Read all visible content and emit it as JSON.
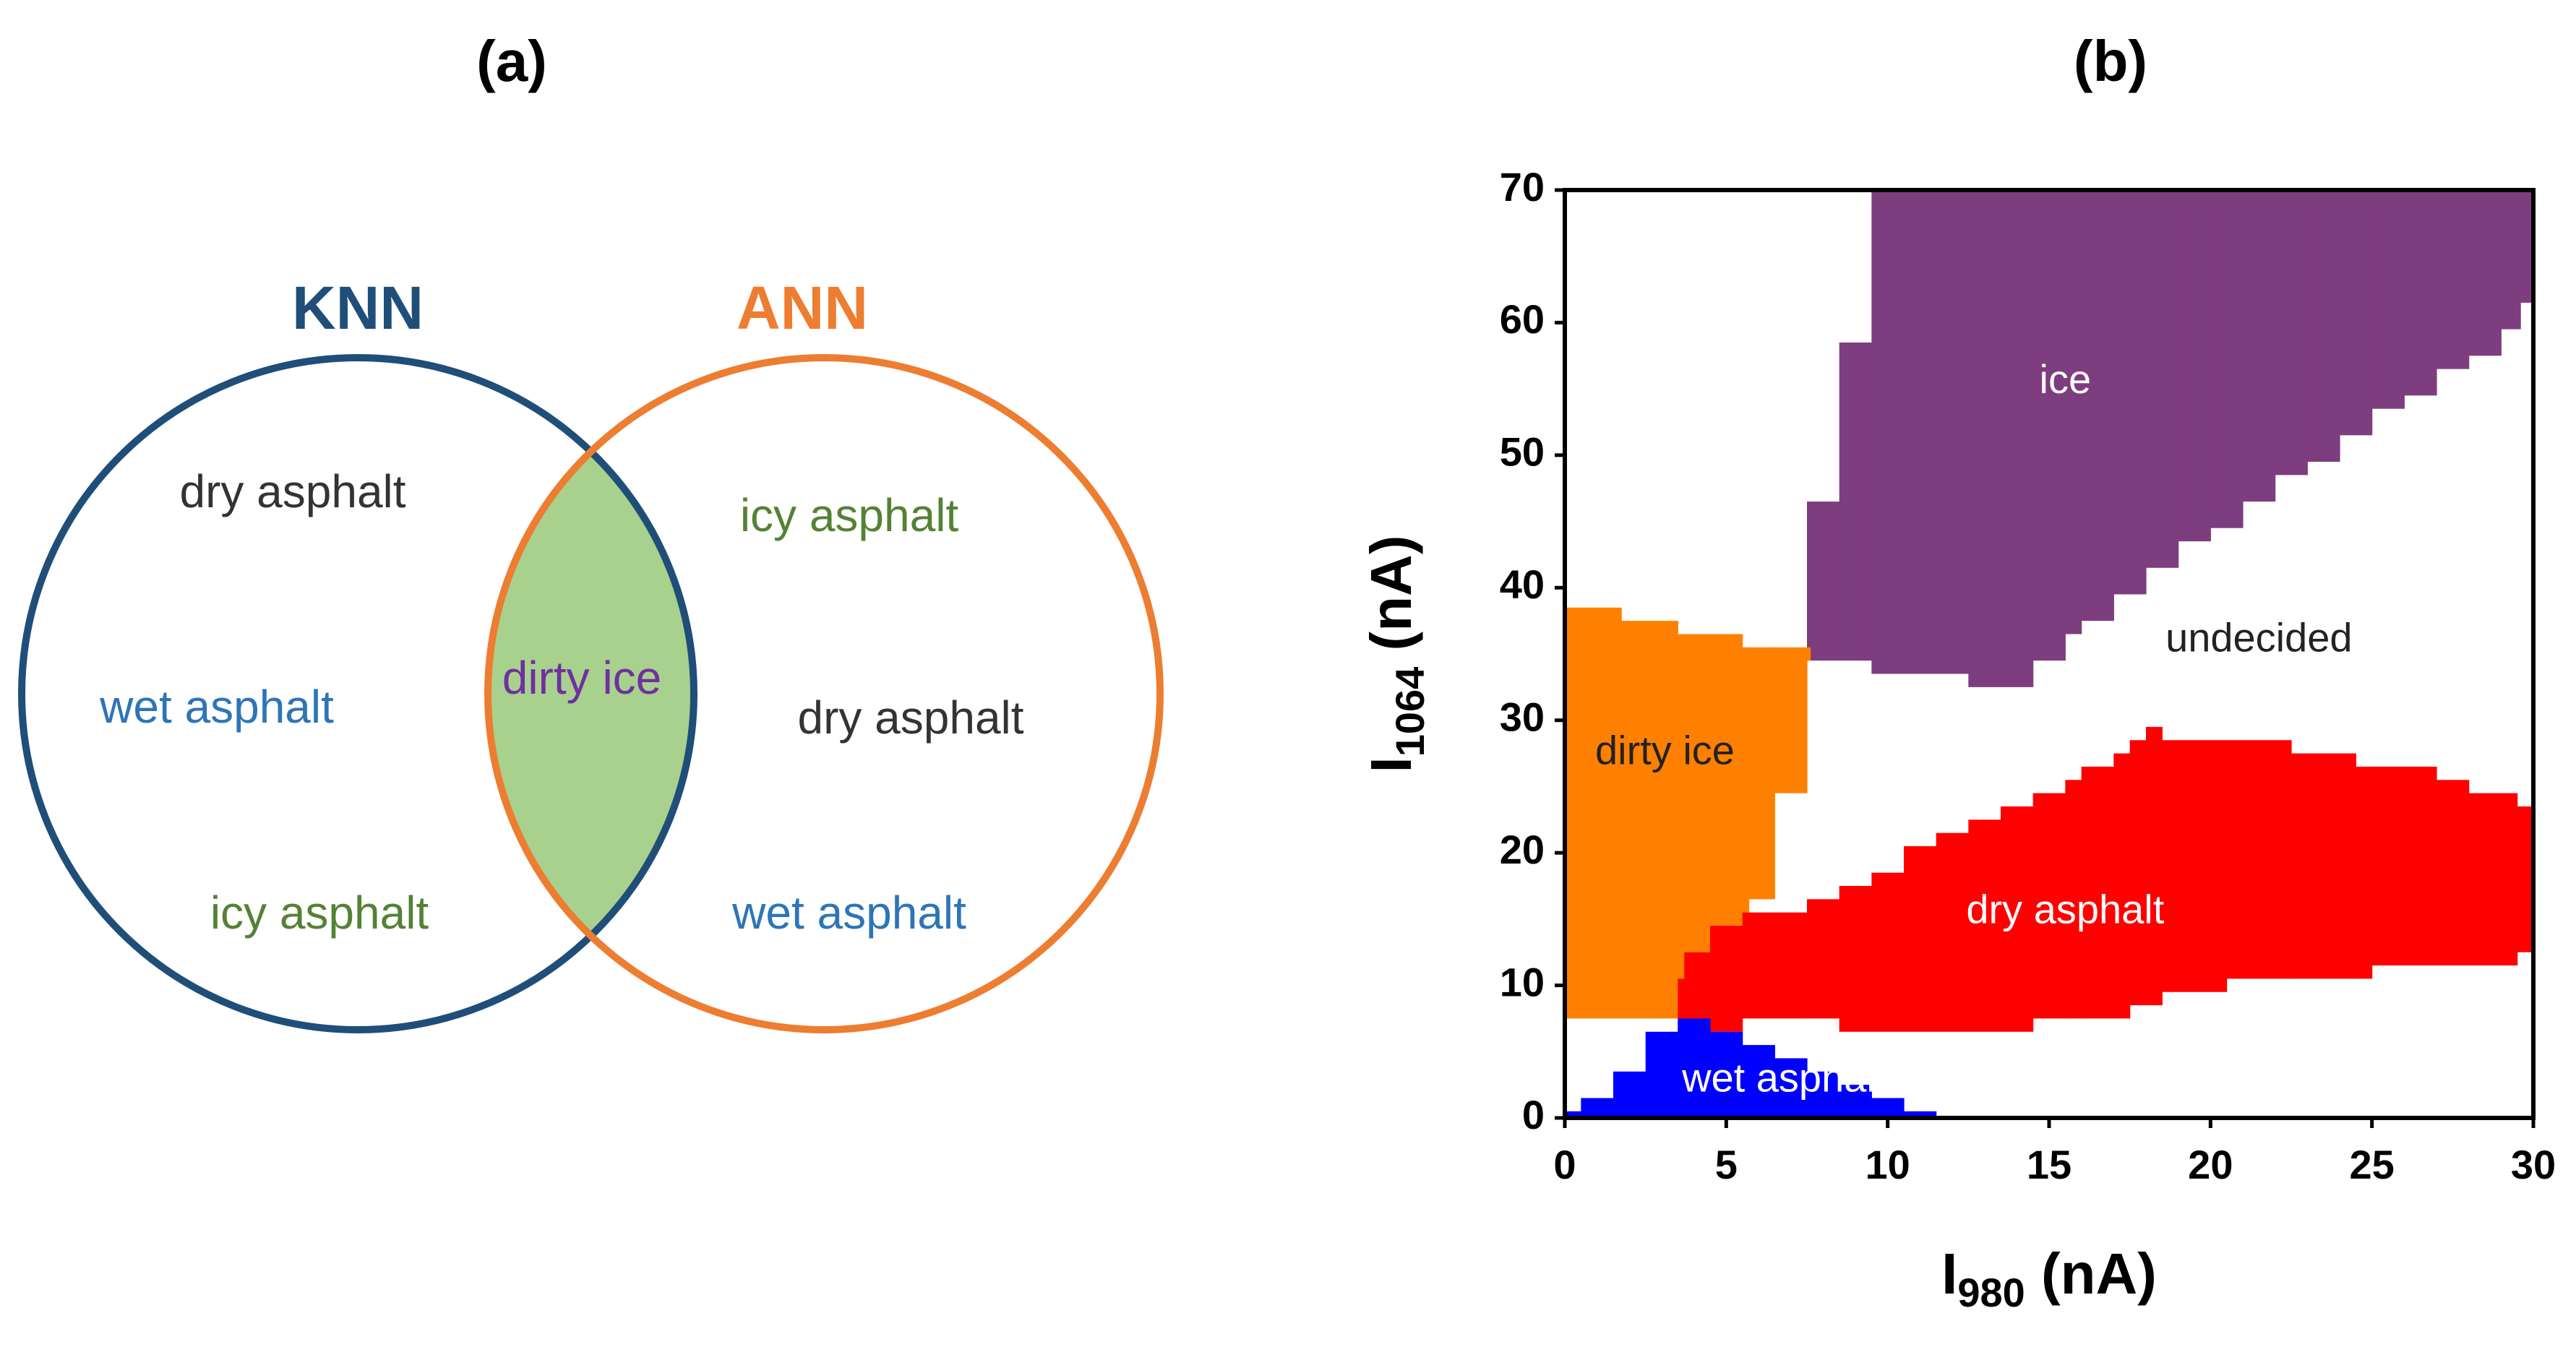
{
  "panels": {
    "a": "(a)",
    "b": "(b)"
  },
  "venn": {
    "left_title": "KNN",
    "right_title": "ANN",
    "left_color": "#1f4e79",
    "right_color": "#ed7d31",
    "overlap_color": "#a9d18e",
    "left_only": [
      {
        "text": "dry asphalt",
        "color": "#333333"
      },
      {
        "text": "wet asphalt",
        "color": "#2e75b6"
      },
      {
        "text": "icy asphalt",
        "color": "#548235"
      }
    ],
    "overlap": [
      {
        "text": "dirty ice",
        "color": "#7030a0"
      }
    ],
    "right_only": [
      {
        "text": "icy asphalt",
        "color": "#548235"
      },
      {
        "text": "dry asphalt",
        "color": "#333333"
      },
      {
        "text": "wet asphalt",
        "color": "#2e75b6"
      }
    ]
  },
  "chart_data": {
    "type": "region map",
    "xlabel": {
      "main": "I",
      "sub": "980",
      "unit": " (nA)"
    },
    "ylabel": {
      "main": "I",
      "sub": "1064",
      "unit": " (nA)"
    },
    "xlim": [
      0,
      30
    ],
    "ylim": [
      0,
      70
    ],
    "xticks": [
      "0",
      "5",
      "10",
      "15",
      "20",
      "25",
      "30"
    ],
    "yticks": [
      "0",
      "10",
      "20",
      "30",
      "40",
      "50",
      "60",
      "70"
    ],
    "regions": [
      {
        "name": "ice",
        "color": "#7e3d7e",
        "text_color": "#ffffff",
        "label": "ice",
        "label_at": [
          15.5,
          55.5
        ],
        "bounds": [
          [
            7.5,
            34.5,
            46.5
          ],
          [
            8.5,
            34.5,
            58.5
          ],
          [
            9.5,
            33.5,
            70
          ],
          [
            12.5,
            32.5,
            70
          ],
          [
            14.5,
            34.5,
            70
          ],
          [
            15.5,
            36.5,
            70
          ],
          [
            16.0,
            37.5,
            70
          ],
          [
            17.0,
            39.5,
            70
          ],
          [
            18.0,
            41.5,
            70
          ],
          [
            19.0,
            43.5,
            70
          ],
          [
            20.0,
            44.5,
            70
          ],
          [
            21.0,
            46.5,
            70
          ],
          [
            22.0,
            48.5,
            70
          ],
          [
            23.0,
            49.5,
            70
          ],
          [
            24.0,
            51.5,
            70
          ],
          [
            25.0,
            53.5,
            70
          ],
          [
            26.0,
            54.5,
            70
          ],
          [
            27.0,
            56.5,
            70
          ],
          [
            28.0,
            57.5,
            70
          ],
          [
            29.0,
            59.5,
            70
          ],
          [
            29.6,
            61.5,
            70
          ],
          [
            30.0,
            null,
            null
          ]
        ]
      },
      {
        "name": "dirty ice",
        "color": "#ff8000",
        "text_color": "#222222",
        "label": "dirty ice",
        "label_at": [
          3.1,
          27.5
        ],
        "bounds": [
          [
            0,
            7.5,
            38.5
          ],
          [
            1.75,
            7.5,
            37.5
          ],
          [
            3.5,
            7.5,
            36.5
          ],
          [
            3.7,
            12.5,
            36.5
          ],
          [
            4.7,
            14.5,
            36.5
          ],
          [
            5.5,
            14.5,
            35.5
          ],
          [
            5.7,
            16.5,
            35.5
          ],
          [
            6.5,
            24.5,
            35.5
          ],
          [
            7.5,
            34.5,
            35.5
          ],
          [
            7.6,
            null,
            null
          ]
        ]
      },
      {
        "name": "dry asphalt",
        "color": "#ff0000",
        "text_color": "#ffffff",
        "label": "dry asphalt",
        "label_at": [
          15.5,
          15.5
        ],
        "bounds": [
          [
            3.5,
            6.5,
            10.5
          ],
          [
            3.7,
            6.5,
            12.5
          ],
          [
            4.5,
            6.5,
            14.5
          ],
          [
            5.5,
            7.5,
            15.5
          ],
          [
            7.5,
            7.5,
            16.5
          ],
          [
            8.5,
            6.5,
            17.5
          ],
          [
            9.5,
            6.5,
            18.5
          ],
          [
            10.5,
            6.5,
            20.5
          ],
          [
            11.5,
            6.5,
            21.5
          ],
          [
            12.5,
            6.5,
            22.5
          ],
          [
            13.5,
            6.5,
            23.5
          ],
          [
            14.5,
            7.5,
            24.5
          ],
          [
            15.5,
            7.5,
            25.5
          ],
          [
            16.0,
            7.5,
            26.5
          ],
          [
            17.0,
            7.5,
            27.5
          ],
          [
            17.5,
            8.5,
            28.5
          ],
          [
            18.0,
            8.5,
            29.5
          ],
          [
            18.5,
            9.5,
            28.5
          ],
          [
            20.5,
            10.5,
            28.5
          ],
          [
            22.5,
            10.5,
            27.5
          ],
          [
            24.5,
            10.5,
            26.5
          ],
          [
            25.0,
            11.5,
            26.5
          ],
          [
            27.0,
            11.5,
            25.5
          ],
          [
            28.0,
            11.5,
            24.5
          ],
          [
            29.5,
            12.5,
            23.5
          ],
          [
            30.0,
            null,
            null
          ]
        ]
      },
      {
        "name": "wet asphalt",
        "color": "#0000ff",
        "text_color": "#ffffff",
        "label": "wet asphalt",
        "label_at": [
          6.8,
          2.8
        ],
        "bounds": [
          [
            0,
            0,
            0.5
          ],
          [
            0.5,
            0,
            1.5
          ],
          [
            1.5,
            0,
            3.5
          ],
          [
            2.5,
            0,
            6.5
          ],
          [
            3.5,
            0,
            7.5
          ],
          [
            4.5,
            0,
            6.5
          ],
          [
            5.5,
            0,
            5.5
          ],
          [
            6.5,
            0,
            4.5
          ],
          [
            7.5,
            0,
            3.5
          ],
          [
            8.5,
            0,
            2.5
          ],
          [
            9.5,
            0,
            1.5
          ],
          [
            10.5,
            0,
            0.5
          ],
          [
            11.5,
            null,
            null
          ]
        ]
      }
    ],
    "annotations": [
      {
        "text": "undecided",
        "at": [
          21.5,
          36.0
        ],
        "color": "#222222"
      }
    ]
  }
}
